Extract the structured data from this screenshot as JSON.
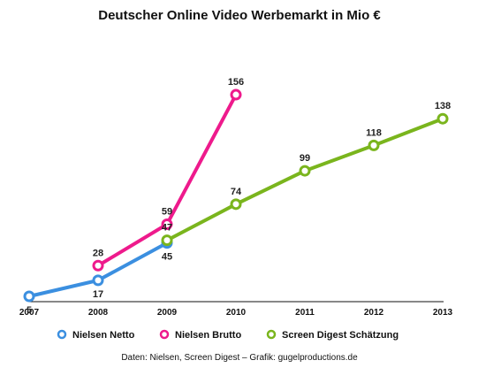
{
  "chart_data": {
    "type": "line",
    "title": "Deutscher Online Video Werbemarkt in Mio €",
    "xlabel": "",
    "ylabel": "",
    "categories": [
      "2007",
      "2008",
      "2009",
      "2010",
      "2011",
      "2012",
      "2013"
    ],
    "ylim": [
      5,
      160
    ],
    "grid": false,
    "legend_position": "bottom",
    "series": [
      {
        "name": "Nielsen Netto",
        "color": "#3b8fe0",
        "x": [
          "2007",
          "2008",
          "2009"
        ],
        "values": [
          5,
          17,
          45
        ],
        "labels": [
          "5",
          "17",
          "45"
        ],
        "label_side": [
          "below",
          "below",
          "below"
        ]
      },
      {
        "name": "Nielsen Brutto",
        "color": "#ee1a8c",
        "x": [
          "2008",
          "2009",
          "2010"
        ],
        "values": [
          28,
          59,
          156
        ],
        "labels": [
          "28",
          "59",
          "156"
        ],
        "label_side": [
          "above",
          "above",
          "above"
        ]
      },
      {
        "name": "Screen Digest Schätzung",
        "color": "#7ab51d",
        "x": [
          "2009",
          "2010",
          "2011",
          "2012",
          "2013"
        ],
        "values": [
          47,
          74,
          99,
          118,
          138
        ],
        "labels": [
          "47",
          "74",
          "99",
          "118",
          "138"
        ],
        "label_side": [
          "above",
          "above",
          "above",
          "above",
          "above"
        ]
      }
    ]
  },
  "source_note": "Daten: Nielsen, Screen Digest – Grafik: gugelproductions.de"
}
